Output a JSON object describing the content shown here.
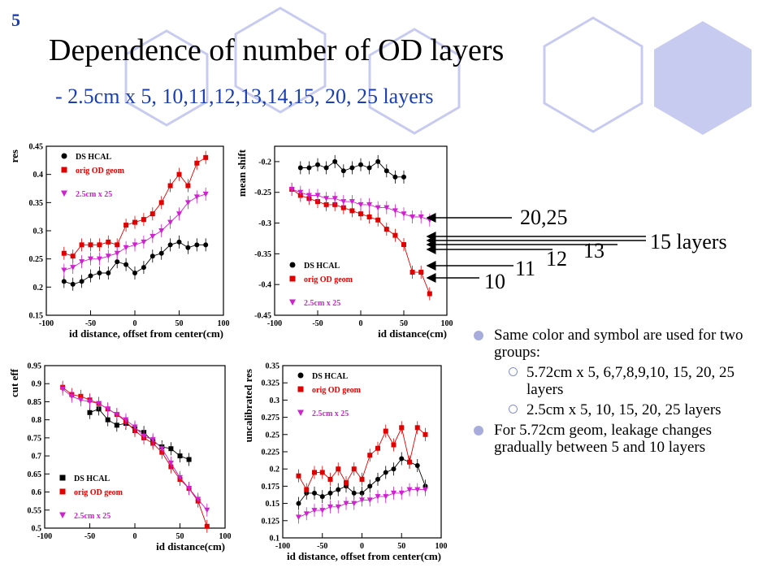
{
  "slide": {
    "number": "5",
    "title": "Dependence of number of OD layers",
    "subtitle": "-  2.5cm x 5, 10,11,12,13,14,15, 20, 25 layers"
  },
  "colors": {
    "black_series": "#000000",
    "red_series": "#e00000",
    "magenta_series": "#d020d0",
    "accent": "#1a3fb0",
    "hexagon": "#c8cbf0"
  },
  "layer_labels": [
    "20,25",
    "15 layers",
    "13",
    "12",
    "11",
    "10"
  ],
  "bullets": [
    {
      "text": "Same color and symbol are used for two groups:",
      "sub": [
        "5.72cm x 5, 6,7,8,9,10, 15, 20, 25 layers",
        "2.5cm x 5, 10, 15, 20, 25 layers"
      ]
    },
    {
      "text": "For 5.72cm geom, leakage changes gradually between 5 and 10 layers",
      "sub": []
    }
  ],
  "chart_data": [
    {
      "type": "scatter",
      "ylabel": "res",
      "xlabel": "id distance, offset from center(cm)",
      "xlim": [
        -100,
        100
      ],
      "ylim": [
        0.15,
        0.45
      ],
      "xticks": [
        "-100",
        "-50",
        "0",
        "50",
        "100"
      ],
      "yticks": [
        "0.15",
        "0.2",
        "0.25",
        "0.3",
        "0.35",
        "0.4",
        "0.45"
      ],
      "legend": [
        "DS HCAL",
        "orig OD geom",
        "2.5cm x 25"
      ],
      "series": [
        {
          "name": "DS HCAL",
          "marker": "circle",
          "x": [
            -80,
            -70,
            -60,
            -50,
            -40,
            -30,
            -20,
            -10,
            0,
            10,
            20,
            30,
            40,
            50,
            60,
            70,
            80
          ],
          "y": [
            0.21,
            0.205,
            0.21,
            0.22,
            0.225,
            0.225,
            0.245,
            0.24,
            0.225,
            0.235,
            0.255,
            0.26,
            0.275,
            0.28,
            0.27,
            0.275,
            0.275
          ]
        },
        {
          "name": "orig OD geom",
          "marker": "square",
          "x": [
            -80,
            -70,
            -60,
            -50,
            -40,
            -30,
            -20,
            -10,
            0,
            10,
            20,
            30,
            40,
            50,
            60,
            70,
            80
          ],
          "y": [
            0.26,
            0.255,
            0.275,
            0.275,
            0.275,
            0.28,
            0.275,
            0.31,
            0.315,
            0.32,
            0.33,
            0.35,
            0.38,
            0.4,
            0.38,
            0.42,
            0.43
          ]
        },
        {
          "name": "2.5cm x 25",
          "marker": "triangle",
          "x": [
            -80,
            -70,
            -60,
            -50,
            -40,
            -30,
            -20,
            -10,
            0,
            10,
            20,
            30,
            40,
            50,
            60,
            70,
            80
          ],
          "y": [
            0.23,
            0.235,
            0.245,
            0.25,
            0.25,
            0.255,
            0.26,
            0.27,
            0.275,
            0.28,
            0.29,
            0.3,
            0.315,
            0.33,
            0.35,
            0.36,
            0.365
          ]
        }
      ]
    },
    {
      "type": "scatter",
      "ylabel": "mean shift",
      "xlabel": "id distance(cm)",
      "xlim": [
        -100,
        100
      ],
      "ylim": [
        -0.45,
        -0.175
      ],
      "xticks": [
        "-100",
        "-50",
        "0",
        "50",
        "100"
      ],
      "yticks": [
        "-0.2",
        "-0.25",
        "-0.3",
        "-0.35",
        "-0.4",
        "-0.45"
      ],
      "legend": [
        "DS HCAL",
        "orig OD geom",
        "2.5cm x 25"
      ],
      "series": [
        {
          "name": "DS HCAL",
          "marker": "circle",
          "x": [
            -70,
            -60,
            -50,
            -40,
            -30,
            -20,
            -10,
            0,
            10,
            20,
            30,
            40,
            50
          ],
          "y": [
            -0.21,
            -0.21,
            -0.205,
            -0.21,
            -0.2,
            -0.215,
            -0.21,
            -0.205,
            -0.21,
            -0.2,
            -0.215,
            -0.225,
            -0.225
          ]
        },
        {
          "name": "orig OD geom",
          "marker": "square",
          "x": [
            -80,
            -70,
            -60,
            -50,
            -40,
            -30,
            -20,
            -10,
            0,
            10,
            20,
            30,
            40,
            50,
            60,
            70,
            80
          ],
          "y": [
            -0.245,
            -0.255,
            -0.26,
            -0.265,
            -0.27,
            -0.27,
            -0.275,
            -0.28,
            -0.285,
            -0.29,
            -0.295,
            -0.31,
            -0.32,
            -0.335,
            -0.38,
            -0.38,
            -0.415
          ]
        },
        {
          "name": "2.5cm x 25",
          "marker": "triangle",
          "x": [
            -80,
            -70,
            -60,
            -50,
            -40,
            -30,
            -20,
            -10,
            0,
            10,
            20,
            30,
            40,
            50,
            60,
            70,
            80
          ],
          "y": [
            -0.245,
            -0.25,
            -0.255,
            -0.255,
            -0.26,
            -0.26,
            -0.265,
            -0.265,
            -0.27,
            -0.27,
            -0.275,
            -0.275,
            -0.28,
            -0.285,
            -0.29,
            -0.29,
            -0.295
          ]
        }
      ]
    },
    {
      "type": "scatter",
      "ylabel": "cut eff",
      "xlabel": "id distance(cm)",
      "xlim": [
        -100,
        100
      ],
      "ylim": [
        0.5,
        0.95
      ],
      "xticks": [
        "-100",
        "-50",
        "0",
        "50",
        "100"
      ],
      "yticks": [
        "0.5",
        "0.55",
        "0.6",
        "0.65",
        "0.7",
        "0.75",
        "0.8",
        "0.85",
        "0.9",
        "0.95"
      ],
      "legend": [
        "DS HCAL",
        "orig OD geom",
        "2.5cm x 25"
      ],
      "series": [
        {
          "name": "DS HCAL",
          "marker": "square",
          "x": [
            -50,
            -40,
            -30,
            -20,
            -10,
            0,
            10,
            20,
            30,
            40,
            50,
            60
          ],
          "y": [
            0.82,
            0.83,
            0.8,
            0.785,
            0.79,
            0.775,
            0.765,
            0.74,
            0.725,
            0.72,
            0.7,
            0.69
          ]
        },
        {
          "name": "orig OD geom",
          "marker": "square",
          "x": [
            -80,
            -70,
            -60,
            -50,
            -40,
            -30,
            -20,
            -10,
            0,
            10,
            20,
            30,
            40,
            50,
            60,
            70,
            80
          ],
          "y": [
            0.89,
            0.87,
            0.865,
            0.855,
            0.845,
            0.83,
            0.815,
            0.795,
            0.77,
            0.75,
            0.735,
            0.71,
            0.67,
            0.635,
            0.61,
            0.575,
            0.505
          ]
        },
        {
          "name": "2.5cm x 25",
          "marker": "triangle",
          "x": [
            -80,
            -70,
            -60,
            -50,
            -40,
            -30,
            -20,
            -10,
            0,
            10,
            20,
            30,
            40,
            50,
            60,
            70,
            80
          ],
          "y": [
            0.885,
            0.865,
            0.855,
            0.85,
            0.845,
            0.83,
            0.815,
            0.8,
            0.78,
            0.755,
            0.745,
            0.72,
            0.68,
            0.64,
            0.61,
            0.58,
            0.55
          ]
        }
      ]
    },
    {
      "type": "scatter",
      "ylabel": "uncalibrated res",
      "xlabel": "id distance, offset from center(cm)",
      "xlim": [
        -100,
        100
      ],
      "ylim": [
        0.1,
        0.35
      ],
      "xticks": [
        "-100",
        "-50",
        "0",
        "50",
        "100"
      ],
      "yticks": [
        "0.1",
        "0.125",
        "0.15",
        "0.175",
        "0.2",
        "0.225",
        "0.25",
        "0.275",
        "0.3",
        "0.325",
        "0.35"
      ],
      "legend": [
        "DS HCAL",
        "orig OD geom",
        "2.5cm x 25"
      ],
      "series": [
        {
          "name": "DS HCAL",
          "marker": "circle",
          "x": [
            -80,
            -70,
            -60,
            -50,
            -40,
            -30,
            -20,
            -10,
            0,
            10,
            20,
            30,
            40,
            50,
            60,
            70,
            80
          ],
          "y": [
            0.15,
            0.165,
            0.165,
            0.16,
            0.165,
            0.17,
            0.175,
            0.165,
            0.165,
            0.175,
            0.185,
            0.195,
            0.2,
            0.215,
            0.21,
            0.205,
            0.175
          ]
        },
        {
          "name": "orig OD geom",
          "marker": "square",
          "x": [
            -80,
            -70,
            -60,
            -50,
            -40,
            -30,
            -20,
            -10,
            0,
            10,
            20,
            30,
            40,
            50,
            60,
            70,
            80
          ],
          "y": [
            0.19,
            0.17,
            0.195,
            0.195,
            0.185,
            0.2,
            0.18,
            0.2,
            0.185,
            0.22,
            0.23,
            0.255,
            0.235,
            0.26,
            0.21,
            0.26,
            0.25
          ]
        },
        {
          "name": "2.5cm x 25",
          "marker": "triangle",
          "x": [
            -80,
            -70,
            -60,
            -50,
            -40,
            -30,
            -20,
            -10,
            0,
            10,
            20,
            30,
            40,
            50,
            60,
            70,
            80
          ],
          "y": [
            0.13,
            0.135,
            0.14,
            0.14,
            0.145,
            0.145,
            0.15,
            0.15,
            0.155,
            0.155,
            0.16,
            0.16,
            0.165,
            0.165,
            0.17,
            0.17,
            0.17
          ]
        }
      ]
    }
  ]
}
